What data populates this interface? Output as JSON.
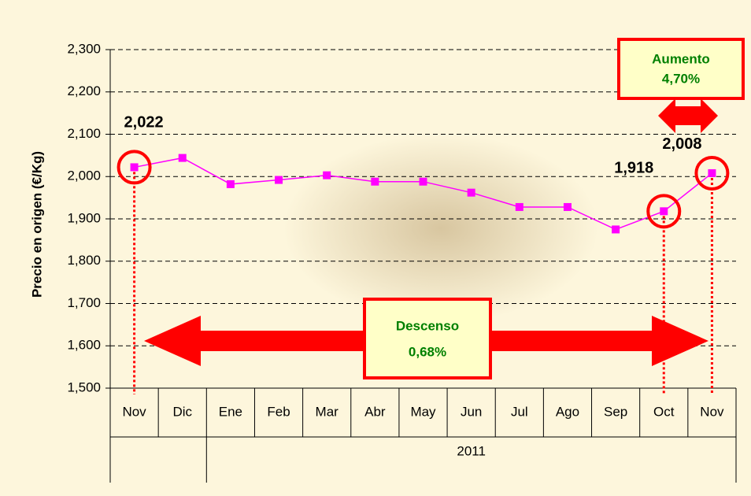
{
  "chart_data": {
    "type": "line",
    "y_label": "Precio en origen (€/Kg)",
    "categories": [
      "Nov",
      "Dic",
      "Ene",
      "Feb",
      "Mar",
      "Abr",
      "May",
      "Jun",
      "Jul",
      "Ago",
      "Sep",
      "Oct",
      "Nov"
    ],
    "category_group": "2011",
    "values": [
      2.022,
      2.044,
      1.982,
      1.992,
      2.003,
      1.988,
      1.988,
      1.962,
      1.928,
      1.928,
      1.875,
      1.918,
      2.008
    ],
    "value_labels": [
      "2,022",
      null,
      null,
      null,
      null,
      null,
      null,
      null,
      null,
      null,
      null,
      "1,918",
      "2,008"
    ],
    "color": "#ff00ff",
    "ylim": [
      1.5,
      2.3
    ],
    "yticks": [
      {
        "value": 1.5,
        "label": "1,500"
      },
      {
        "value": 1.6,
        "label": "1,600"
      },
      {
        "value": 1.7,
        "label": "1,700"
      },
      {
        "value": 1.8,
        "label": "1,800"
      },
      {
        "value": 1.9,
        "label": "1,900"
      },
      {
        "value": 2.0,
        "label": "2,000"
      },
      {
        "value": 2.1,
        "label": "2,100"
      },
      {
        "value": 2.2,
        "label": "2,200"
      },
      {
        "value": 2.3,
        "label": "2,300"
      }
    ],
    "grid": true,
    "annotations": [
      {
        "title": "Descenso",
        "text": "0,68%"
      },
      {
        "title": "Aumento",
        "text": "4,70%"
      }
    ]
  }
}
